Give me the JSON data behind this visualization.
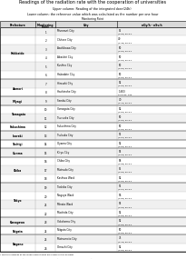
{
  "title": "Readings of the radiation rate with the cooperation of universities",
  "subtitle1": "Upper column: Reading of the integrated dose(24h)",
  "subtitle2": "Lower column: the reference value which was calculated as the number per one hour",
  "subtitle3": "Monitoring Point",
  "col_headers": [
    "Prefecture",
    "Monitoring\nPoint",
    "City",
    "nGy/h - nSv/h"
  ],
  "rows": [
    {
      "pref": "Hokkaido",
      "pt": "1",
      "city": "Murorant City",
      "val1": "55",
      "val2": "(0.55) 30-3.1"
    },
    {
      "pref": "",
      "pt": "2",
      "city": "Chitose City",
      "val1": "49",
      "val2": "(0.49) 29-3.1"
    },
    {
      "pref": "",
      "pt": "3",
      "city": "Asahikawa City",
      "val1": "50",
      "val2": "(0.50) 29-3.1"
    },
    {
      "pref": "",
      "pt": "4",
      "city": "Abashiri City",
      "val1": "50",
      "val2": "(0.50) 30-3.1"
    },
    {
      "pref": "",
      "pt": "5",
      "city": "Kushiro City",
      "val1": "50",
      "val2": "(0.50) 29-3.1"
    },
    {
      "pref": "",
      "pt": "6",
      "city": "Hakodate City",
      "val1": "50",
      "val2": "(0.50) 30-3.1"
    },
    {
      "pref": "Aomori",
      "pt": "7",
      "city": "Hirosaki City",
      "val1": "52",
      "val2": "(0.52) 30-3.1"
    },
    {
      "pref": "",
      "pt": "8",
      "city": "Hachinohe City",
      "val1": "1,603",
      "val2": "66.8 No. 105"
    },
    {
      "pref": "Miyagi",
      "pt": "9",
      "city": "Sendai City",
      "val1": "70",
      "val2": "(0.70) 30-3.1"
    },
    {
      "pref": "Yamagata",
      "pt": "10",
      "city": "Yamagata City",
      "val1": "52",
      "val2": "(0.52) 30-3.1"
    },
    {
      "pref": "",
      "pt": "11",
      "city": "Tsuruoka City",
      "val1": "50",
      "val2": "(0.50) 30-3.1"
    },
    {
      "pref": "Fukushima",
      "pt": "12",
      "city": "Fukushima City",
      "val1": "50",
      "val2": "(0.50) 30-3.1"
    },
    {
      "pref": "Ibaraki",
      "pt": "13",
      "city": "Tsukuba City",
      "val1": "51",
      "val2": "(0.51) 30-3.1"
    },
    {
      "pref": "Tochigi",
      "pt": "14",
      "city": "Oyama City",
      "val1": "52",
      "val2": "(0.52) 30-3.1"
    },
    {
      "pref": "Gunma",
      "pt": "15",
      "city": "Kiryu City",
      "val1": "53",
      "val2": "(0.53) 30-3.1"
    },
    {
      "pref": "Chiba",
      "pt": "16",
      "city": "Chiba City",
      "val1": "58",
      "val2": "(0.58) 30-3.1"
    },
    {
      "pref": "",
      "pt": "17",
      "city": "Matsudo City",
      "val1": "55",
      "val2": "(0.55) 30-3.1"
    },
    {
      "pref": "",
      "pt": "18",
      "city": "Kashiwa Ward",
      "val1": "52",
      "val2": "(0.52) 30-3.1"
    },
    {
      "pref": "Tokyo",
      "pt": "19",
      "city": "Toshiba City",
      "val1": "51",
      "val2": "(0.51) 30-3.1"
    },
    {
      "pref": "",
      "pt": "20",
      "city": "Nagoya Ward",
      "val1": "56",
      "val2": "(0.56) 30-3.1"
    },
    {
      "pref": "",
      "pt": "21",
      "city": "Minato Ward",
      "val1": "53",
      "val2": "(0.53) 30-3.1"
    },
    {
      "pref": "",
      "pt": "22",
      "city": "Machida City",
      "val1": "52",
      "val2": "(0.52) 30-3.1"
    },
    {
      "pref": "Kanagawa",
      "pt": "23",
      "city": "Yokohama City",
      "val1": "52",
      "val2": "(0.52) 30-3.1"
    },
    {
      "pref": "Niigata",
      "pt": "24",
      "city": "Niigata City",
      "val1": "50",
      "val2": "(0.50) 30-3.1"
    },
    {
      "pref": "Nagano",
      "pt": "25",
      "city": "Matsumoto City",
      "val1": "75",
      "val2": "(0.75) 30-3.1"
    },
    {
      "pref": "",
      "pt": "26",
      "city": "Omachi City",
      "val1": "52",
      "val2": "(0.52) 30-3.1"
    }
  ],
  "footnote1": "* Multiple readings at the measurement point are shown as the average.",
  "footnote2": "** Readings shown as the reference value are based on the number per one measurement day, No. n."
}
